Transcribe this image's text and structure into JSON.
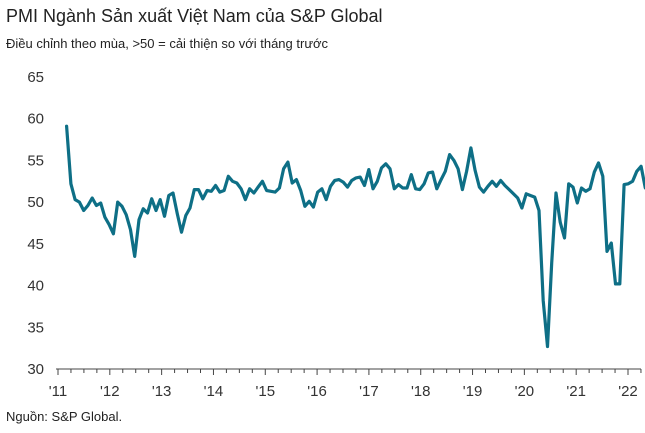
{
  "chart_data": {
    "type": "line",
    "title": "PMI Ngành Sản xuất Việt Nam của S&P Global",
    "subtitle": "Điều chỉnh theo mùa, >50 = cải thiện so với tháng trước",
    "source": "Nguồn: S&P Global.",
    "xlabel": "",
    "ylabel": "",
    "ylim": [
      30,
      65
    ],
    "yticks": [
      30,
      35,
      40,
      45,
      50,
      55,
      60,
      65
    ],
    "xticks": [
      "'11",
      "'12",
      "'13",
      "'14",
      "'15",
      "'16",
      "'17",
      "'18",
      "'19",
      "'20",
      "'21",
      "'22"
    ],
    "x_start": "2011-03",
    "x_end": "2022-06",
    "color": "#0e6f86",
    "series": [
      {
        "name": "PMI",
        "values": [
          59.1,
          52.2,
          50.3,
          50.0,
          49.0,
          49.6,
          50.5,
          49.6,
          49.9,
          48.2,
          47.3,
          46.2,
          50.0,
          49.5,
          48.5,
          46.7,
          43.5,
          47.9,
          49.2,
          48.7,
          50.4,
          49.0,
          50.3,
          48.3,
          50.8,
          51.1,
          48.6,
          46.4,
          48.4,
          49.3,
          51.5,
          51.5,
          50.4,
          51.4,
          51.3,
          52.0,
          51.2,
          51.4,
          53.1,
          52.5,
          52.3,
          51.6,
          50.3,
          51.6,
          51.1,
          51.8,
          52.5,
          51.4,
          51.3,
          51.2,
          51.7,
          54.0,
          54.8,
          52.3,
          52.7,
          51.4,
          49.5,
          50.1,
          49.4,
          51.2,
          51.6,
          50.3,
          51.9,
          52.6,
          52.7,
          52.4,
          51.8,
          52.6,
          52.9,
          53.0,
          52.0,
          53.9,
          51.6,
          52.5,
          54.1,
          54.6,
          54.0,
          51.6,
          52.1,
          51.7,
          51.7,
          53.3,
          51.6,
          51.5,
          52.2,
          53.5,
          53.6,
          51.6,
          52.7,
          53.7,
          55.7,
          55.0,
          54.0,
          51.5,
          53.7,
          56.5,
          53.8,
          51.8,
          51.2,
          51.9,
          52.5,
          51.9,
          52.6,
          52.0,
          51.5,
          51.0,
          50.5,
          49.3,
          51.0,
          50.8,
          50.6,
          49.0,
          38.2,
          32.7,
          42.7,
          51.1,
          47.6,
          45.7,
          52.2,
          51.8,
          49.9,
          51.7,
          51.3,
          51.6,
          53.6,
          54.7,
          53.1,
          44.1,
          45.1,
          40.2,
          40.2,
          52.1,
          52.2,
          52.5,
          53.7,
          54.3,
          51.7,
          51.7
        ]
      }
    ]
  }
}
